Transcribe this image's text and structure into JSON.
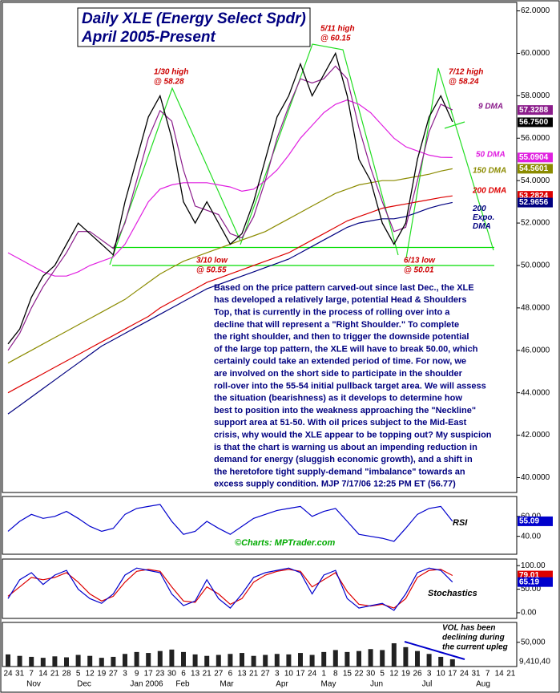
{
  "chart_data": [
    {
      "type": "line",
      "title": "Daily XLE (Energy Select Spdr)",
      "subtitle": "April 2005-Present",
      "categories": [
        "24",
        "31",
        "7",
        "14",
        "21",
        "28",
        "5",
        "12",
        "19",
        "27",
        "3",
        "9",
        "17",
        "23",
        "30",
        "6",
        "13",
        "21",
        "27",
        "6",
        "13",
        "21",
        "27",
        "3",
        "10",
        "17",
        "24",
        "1",
        "8",
        "15",
        "22",
        "30",
        "5",
        "12",
        "19",
        "26",
        "3",
        "10",
        "17",
        "24",
        "31",
        "7",
        "14",
        "21"
      ],
      "months": [
        "Nov",
        "Dec",
        "Jan 2006",
        "Feb",
        "Mar",
        "Apr",
        "May",
        "Jun",
        "Jul",
        "Aug"
      ],
      "series": [
        {
          "color": "#000000",
          "values": [
            46.3,
            47,
            48.5,
            49.5,
            50,
            51,
            52,
            51.5,
            51,
            50.5,
            53,
            55,
            57,
            58,
            56,
            53,
            52,
            53,
            52,
            51,
            51.5,
            53,
            55,
            57,
            58,
            59.5,
            58,
            59,
            60,
            58,
            55,
            54,
            52,
            51,
            52,
            55,
            57,
            58,
            56.77,
            null,
            null,
            null,
            null,
            null
          ]
        },
        {
          "name": "9 DMA",
          "color": "#8b1c8b",
          "values": [
            46,
            46.8,
            48,
            49,
            49.8,
            50.6,
            51.6,
            51.6,
            51.2,
            50.8,
            52,
            54,
            56,
            57.3,
            56.8,
            54.5,
            52.8,
            52.6,
            52.4,
            51.5,
            51.3,
            52.3,
            54,
            56,
            57.5,
            58.8,
            58.6,
            58.8,
            59.4,
            58.8,
            56.5,
            54.6,
            53,
            51.6,
            51.8,
            54,
            56.3,
            57.6,
            57.33,
            null,
            null,
            null,
            null,
            null
          ]
        },
        {
          "name": "50 DMA",
          "color": "#e020e0",
          "values": [
            50.6,
            50.3,
            50,
            49.7,
            49.5,
            49.5,
            49.7,
            50,
            50.2,
            50.4,
            51,
            52,
            53,
            53.6,
            53.8,
            53.9,
            53.9,
            53.9,
            53.8,
            53.7,
            53.5,
            53.6,
            54,
            54.5,
            55.2,
            56,
            56.6,
            57.2,
            57.6,
            57.8,
            57.6,
            57.2,
            56.6,
            56,
            55.6,
            55.4,
            55.2,
            55.1,
            55.09,
            null,
            null,
            null,
            null,
            null
          ]
        },
        {
          "name": "150 DMA",
          "color": "#8b8b00",
          "values": [
            45.4,
            45.7,
            46,
            46.3,
            46.6,
            46.9,
            47.2,
            47.5,
            47.8,
            48.1,
            48.4,
            48.8,
            49.2,
            49.6,
            49.9,
            50.2,
            50.4,
            50.6,
            50.8,
            51,
            51.2,
            51.4,
            51.6,
            51.9,
            52.2,
            52.5,
            52.8,
            53.1,
            53.4,
            53.6,
            53.8,
            53.9,
            54,
            54,
            54.1,
            54.2,
            54.3,
            54.45,
            54.56,
            null,
            null,
            null,
            null,
            null
          ]
        },
        {
          "name": "200 DMA",
          "color": "#dd0000",
          "values": [
            44,
            44.3,
            44.6,
            44.9,
            45.2,
            45.5,
            45.8,
            46.1,
            46.4,
            46.7,
            47,
            47.3,
            47.6,
            48,
            48.3,
            48.6,
            48.9,
            49.2,
            49.4,
            49.6,
            49.8,
            50,
            50.2,
            50.4,
            50.6,
            50.9,
            51.2,
            51.5,
            51.8,
            52.1,
            52.3,
            52.5,
            52.7,
            52.8,
            52.9,
            53,
            53.1,
            53.2,
            53.28,
            null,
            null,
            null,
            null,
            null
          ]
        },
        {
          "name": "200 Expo. DMA",
          "color": "#000080",
          "values": [
            43,
            43.4,
            43.8,
            44.2,
            44.6,
            45,
            45.4,
            45.8,
            46.2,
            46.5,
            46.8,
            47.1,
            47.4,
            47.7,
            48,
            48.3,
            48.6,
            48.9,
            49.1,
            49.3,
            49.5,
            49.7,
            49.9,
            50.1,
            50.3,
            50.6,
            50.9,
            51.2,
            51.5,
            51.8,
            52,
            52.1,
            52.2,
            52.2,
            52.3,
            52.5,
            52.7,
            52.85,
            52.97,
            null,
            null,
            null,
            null,
            null
          ]
        }
      ],
      "levels": [
        50.85,
        50.0
      ],
      "level_color": "#00dd00",
      "ylim": [
        39.3,
        62.4
      ],
      "yticks": [
        {
          "value": 40,
          "label": "40.0000"
        },
        {
          "value": 42,
          "label": "42.0000"
        },
        {
          "value": 44,
          "label": "44.0000"
        },
        {
          "value": 46,
          "label": "46.0000"
        },
        {
          "value": 48,
          "label": "48.0000"
        },
        {
          "value": 50,
          "label": "50.0000"
        },
        {
          "value": 52,
          "label": "52.0000"
        },
        {
          "value": 54,
          "label": "54.0000"
        },
        {
          "value": 56,
          "label": "56.0000"
        },
        {
          "value": 58,
          "label": "58.0000"
        },
        {
          "value": 60,
          "label": "60.0000"
        },
        {
          "value": 62,
          "label": "62.0000"
        }
      ],
      "last_labels": [
        {
          "value": 57.3288,
          "label": "57.3288",
          "color": "#8b1c8b"
        },
        {
          "value": 56.75,
          "label": "56.7500",
          "color": "#000000"
        },
        {
          "value": 55.0904,
          "label": "55.0904",
          "color": "#e020e0"
        },
        {
          "value": 54.5601,
          "label": "54.5601",
          "color": "#8b8b00"
        },
        {
          "value": 53.2824,
          "label": "53.2824",
          "color": "#dd0000"
        },
        {
          "value": 52.9656,
          "label": "52.9656",
          "color": "#000080"
        }
      ],
      "annotations": [
        [
          "1/30 high",
          "@ 58.28"
        ],
        [
          "5/11 high",
          "@ 60.15"
        ],
        [
          "7/12 high",
          "@ 58.24"
        ],
        [
          "3/10 low",
          "@ 50.55"
        ],
        [
          "6/13 low",
          "@ 50.01"
        ]
      ],
      "commentary": [
        "Based on the price pattern carved-out since last Dec., the XLE",
        "has developed a relatively large, potential Head & Shoulders",
        "Top, that is currently in the process of rolling over into a",
        "decline that will represent a \"Right Shoulder.\" To complete",
        "the right shoulder, and then to trigger the downside potential",
        "of the large top pattern, the XLE will have to break 50.00, which",
        "certainly could take an extended period of time. For now, we",
        "are involved on the short side to participate in the shoulder",
        "roll-over into the 55-54 initial pullback target area. We will assess",
        "the situation (bearishness) as it develops to determine how",
        "best to position into the weakness approaching the \"Neckline\"",
        "support area at 51-50. With oil prices subject to the Mid-East",
        "crisis, why would the XLE appear to be topping out? My suspicion",
        "is that the chart is warning us about an impending reduction in",
        "demand for energy (sluggish economic growth), and a shift in",
        "the heretofore tight supply-demand \"imbalance\" towards an",
        "excess supply condition.  MJP 7/17/06  12:25 PM ET (56.77)"
      ]
    },
    {
      "type": "line",
      "label": "RSI",
      "watermark": "©Charts: MPTrader.com",
      "series": [
        {
          "color": "#0000cc",
          "values": [
            45,
            55,
            62,
            58,
            60,
            65,
            58,
            50,
            45,
            48,
            62,
            68,
            70,
            72,
            55,
            42,
            45,
            55,
            48,
            42,
            50,
            58,
            62,
            66,
            68,
            70,
            60,
            65,
            68,
            55,
            42,
            40,
            38,
            35,
            48,
            62,
            68,
            70,
            55.09,
            null,
            null,
            null,
            null,
            null
          ]
        }
      ],
      "ylim": [
        22,
        80
      ],
      "yticks": [
        {
          "value": 40,
          "label": "40.00"
        },
        {
          "value": 60,
          "label": "60.00"
        }
      ],
      "last_labels": [
        {
          "value": 55.09,
          "label": "55.09",
          "color": "#0000cc"
        }
      ]
    },
    {
      "type": "line",
      "label": "Stochastics",
      "series": [
        {
          "color": "#0000cc",
          "values": [
            30,
            70,
            85,
            60,
            80,
            90,
            50,
            30,
            20,
            40,
            80,
            95,
            90,
            85,
            40,
            15,
            25,
            70,
            30,
            10,
            40,
            75,
            85,
            90,
            95,
            85,
            40,
            80,
            90,
            30,
            10,
            15,
            20,
            5,
            40,
            85,
            95,
            90,
            65.19,
            null,
            null,
            null,
            null,
            null
          ]
        },
        {
          "color": "#dd0000",
          "values": [
            35,
            55,
            75,
            70,
            75,
            85,
            65,
            40,
            25,
            35,
            65,
            88,
            92,
            88,
            55,
            25,
            22,
            55,
            40,
            18,
            30,
            65,
            80,
            88,
            92,
            88,
            55,
            70,
            85,
            45,
            18,
            14,
            18,
            10,
            30,
            75,
            90,
            92,
            79.01,
            null,
            null,
            null,
            null,
            null
          ]
        }
      ],
      "ylim": [
        -12,
        114
      ],
      "yticks": [
        {
          "value": 0,
          "label": "0.00"
        },
        {
          "value": 50,
          "label": "50.00"
        },
        {
          "value": 100,
          "label": "100.00"
        }
      ],
      "last_labels": [
        {
          "value": 79.01,
          "label": "79.01",
          "color": "#dd0000"
        },
        {
          "value": 65.19,
          "label": "65.19",
          "color": "#0000cc"
        }
      ]
    },
    {
      "type": "bar",
      "color": "#222222",
      "values": [
        25000,
        22000,
        20000,
        18000,
        21000,
        19000,
        24000,
        22000,
        18000,
        20000,
        26000,
        30000,
        28000,
        32000,
        35000,
        30000,
        25000,
        22000,
        24000,
        26000,
        28000,
        22000,
        24000,
        26000,
        25000,
        28000,
        24000,
        30000,
        34000,
        30000,
        32000,
        36000,
        34000,
        48000,
        40000,
        32000,
        26000,
        20000,
        15000,
        null,
        null,
        null,
        null,
        null
      ],
      "ylim": [
        0,
        91000
      ],
      "yticks": [
        {
          "value": 50000,
          "label": "50,000"
        }
      ],
      "last_text": "9,410,40",
      "note": [
        "VOL has been",
        "declining during",
        "the current upleg"
      ]
    }
  ]
}
